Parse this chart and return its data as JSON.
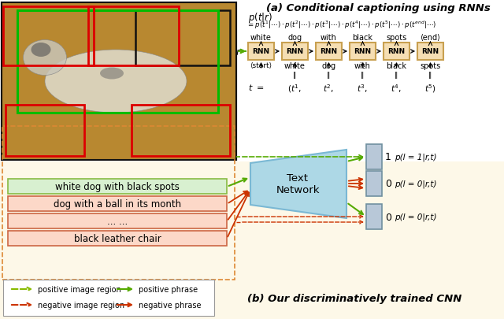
{
  "bg_color": "#fdf8e8",
  "top_bg": "#ffffff",
  "rnn_box_color": "#f5deb3",
  "rnn_box_edge": "#c8a050",
  "text_network_color": "#add8e6",
  "text_network_edge": "#7ab8d4",
  "output_box_color": "#b8c8d8",
  "output_box_edge": "#7090a0",
  "pos_phrase_bg": "#d8f0d0",
  "pos_phrase_edge": "#88bb44",
  "neg_phrase_bg": "#fcd8c8",
  "neg_phrase_edge": "#cc6644",
  "dark_green": "#55aa00",
  "dark_red": "#cc3300",
  "olive_green": "#88bb00",
  "title_a": "(a) Conditional captioning using RNNs",
  "title_b": "(b) Our discriminatively trained CNN",
  "rnn_labels_top": [
    "white",
    "dog",
    "with",
    "black",
    "spots",
    "⟨end⟩"
  ],
  "rnn_labels_bottom": [
    "⟨start⟩",
    "white",
    "dog",
    "with",
    "black",
    "spots"
  ],
  "phrase_boxes": [
    {
      "text": "white dog with black spots",
      "bg": "#d8f0d0",
      "edge": "#88bb44"
    },
    {
      "text": "dog with a ball in its month",
      "bg": "#fcd8c8",
      "edge": "#cc6644"
    },
    {
      "text": "... ...",
      "bg": "#fcd8c8",
      "edge": "#cc6644"
    },
    {
      "text": "black leather chair",
      "bg": "#fcd8c8",
      "edge": "#cc6644"
    }
  ],
  "output_labels": [
    "1",
    "0",
    "0"
  ],
  "output_probs": [
    "p(l = 1|r,t)",
    "p(l = 0|r,t)",
    "p(l = 0|r,t)"
  ]
}
